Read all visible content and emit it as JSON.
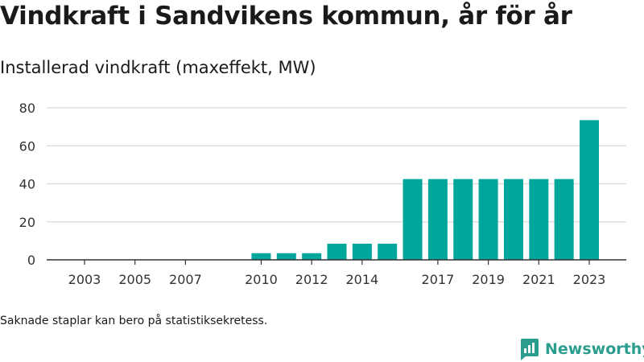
{
  "title": "Vindkraft i Sandvikens kommun, år för år",
  "subtitle": "Installerad vindkraft (maxeffekt, MW)",
  "footnote": "Saknade staplar kan bero på statistiksekretess.",
  "brand": {
    "name": "Newsworthy",
    "logo_icon": "newsworthy-logo-icon"
  },
  "chart_data": {
    "type": "bar",
    "title": "Vindkraft i Sandvikens kommun, år för år",
    "subtitle": "Installerad vindkraft (maxeffekt, MW)",
    "xlabel": "",
    "ylabel": "",
    "categories": [
      2003,
      2004,
      2005,
      2006,
      2007,
      2008,
      2009,
      2010,
      2011,
      2012,
      2013,
      2014,
      2015,
      2016,
      2017,
      2018,
      2019,
      2020,
      2021,
      2022,
      2023
    ],
    "x_tick_labels": [
      "2003",
      "2005",
      "2007",
      "2010",
      "2012",
      "2014",
      "2017",
      "2019",
      "2021",
      "2023"
    ],
    "series": [
      {
        "values": [
          0,
          0,
          0,
          0,
          0,
          null,
          null,
          3.5,
          3.5,
          3.5,
          8.5,
          8.5,
          8.5,
          42.5,
          42.5,
          42.5,
          42.5,
          42.5,
          42.5,
          42.5,
          73.5
        ]
      }
    ],
    "y_ticks": [
      0,
      20,
      40,
      60,
      80
    ],
    "ylim": [
      0,
      80
    ],
    "grid": true,
    "legend": "none",
    "colors": {
      "bar": "#00a59b",
      "grid": "#d9d9d9",
      "axis": "#333333",
      "text": "#333333"
    }
  }
}
